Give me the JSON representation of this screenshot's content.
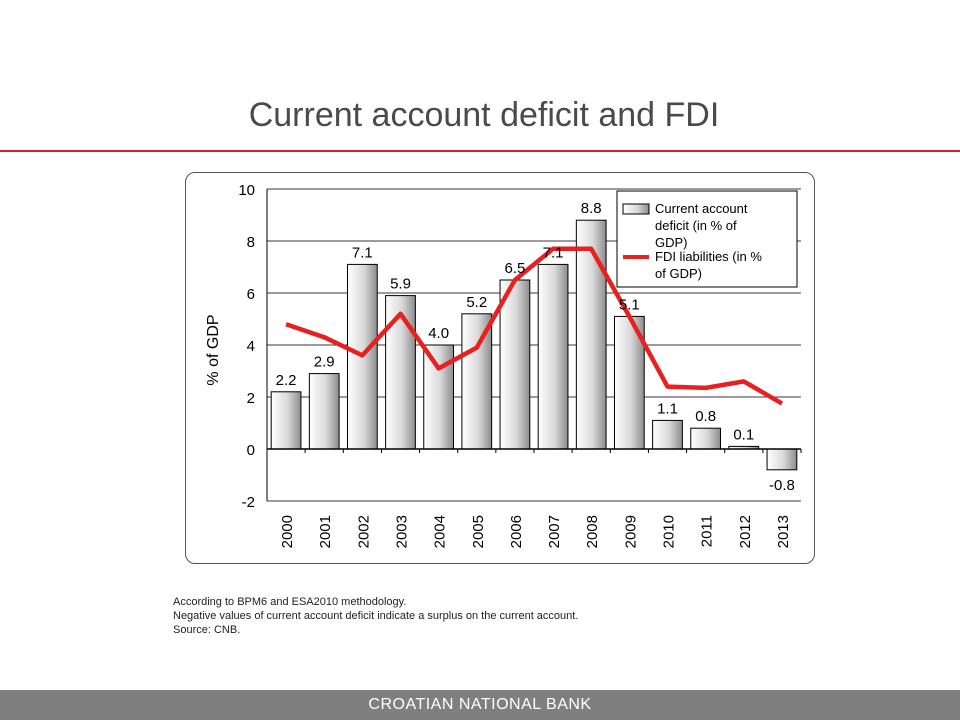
{
  "slide": {
    "title": "Current account deficit and FDI",
    "notes": [
      "According to BPM6 and ESA2010 methodology.",
      "Negative values of current account deficit indicate a surplus on the current account.",
      "Source: CNB."
    ],
    "footer": "CROATIAN NATIONAL BANK",
    "accent_color": "#c8242b",
    "footer_color": "#7f7f7f"
  },
  "chart_data": {
    "type": "bar",
    "categories": [
      "2000",
      "2001",
      "2002",
      "2003",
      "2004",
      "2005",
      "2006",
      "2007",
      "2008",
      "2009",
      "2010",
      "2011",
      "2012",
      "2013"
    ],
    "ylabel": "% of GDP",
    "ylim": [
      -2,
      10
    ],
    "yticks": [
      -2,
      0,
      2,
      4,
      6,
      8,
      10
    ],
    "grid": true,
    "legend_placement": "top-right",
    "series": [
      {
        "name": "Current account deficit (in %  of GDP)",
        "kind": "bar",
        "values": [
          2.2,
          2.9,
          7.1,
          5.9,
          4.0,
          5.2,
          6.5,
          7.1,
          8.8,
          5.1,
          1.1,
          0.8,
          0.1,
          -0.8
        ],
        "data_labels": [
          "2.2",
          "2.9",
          "7.1",
          "5.9",
          "4.0",
          "5.2",
          "6.5",
          "7.1",
          "8.8",
          "5.1",
          "1.1",
          "0.8",
          "0.1",
          "-0.8"
        ],
        "color": "#d9d9d9"
      },
      {
        "name": "FDI liabilities (in % of GDP)",
        "kind": "line",
        "values": [
          4.8,
          4.3,
          3.6,
          5.2,
          3.1,
          3.9,
          6.5,
          7.7,
          7.7,
          5.1,
          2.4,
          2.35,
          2.6,
          1.75
        ],
        "color": "#e8201f"
      }
    ]
  }
}
